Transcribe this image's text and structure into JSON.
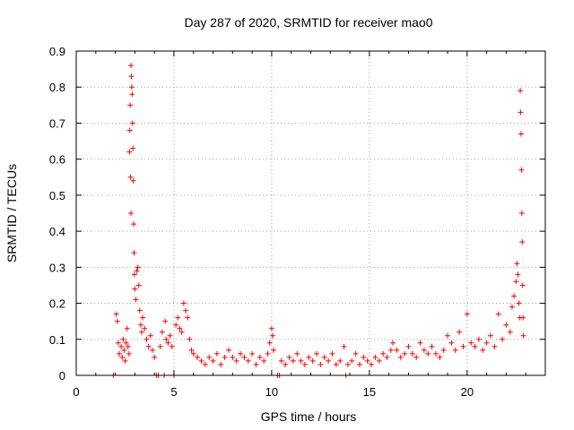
{
  "chart_data": {
    "type": "scatter",
    "title": "Day 287 of 2020, SRMTID for receiver mao0",
    "xlabel": "GPS time / hours",
    "ylabel": "SRMTID / TECUs",
    "xlim": [
      0,
      24
    ],
    "ylim": [
      0,
      0.9
    ],
    "xticks": [
      "0",
      "5",
      "10",
      "15",
      "20"
    ],
    "xtick_values": [
      0,
      5,
      10,
      15,
      20
    ],
    "yticks": [
      "0",
      "0.1",
      "0.2",
      "0.3",
      "0.4",
      "0.5",
      "0.6",
      "0.7",
      "0.8",
      "0.9"
    ],
    "ytick_values": [
      0,
      0.1,
      0.2,
      0.3,
      0.4,
      0.5,
      0.6,
      0.7,
      0.8,
      0.9
    ],
    "grid": true,
    "marker": "+",
    "color": "#ff0000",
    "series": [
      {
        "name": "SRMTID",
        "points": [
          [
            1.9,
            0.0
          ],
          [
            2.05,
            0.17
          ],
          [
            2.1,
            0.15
          ],
          [
            2.15,
            0.09
          ],
          [
            2.2,
            0.06
          ],
          [
            2.3,
            0.08
          ],
          [
            2.35,
            0.05
          ],
          [
            2.4,
            0.1
          ],
          [
            2.45,
            0.07
          ],
          [
            2.5,
            0.04
          ],
          [
            2.55,
            0.09
          ],
          [
            2.6,
            0.13
          ],
          [
            2.65,
            0.08
          ],
          [
            2.7,
            0.06
          ],
          [
            2.72,
            0.62
          ],
          [
            2.74,
            0.68
          ],
          [
            2.76,
            0.75
          ],
          [
            2.78,
            0.55
          ],
          [
            2.8,
            0.45
          ],
          [
            2.8,
            0.86
          ],
          [
            2.82,
            0.83
          ],
          [
            2.84,
            0.8
          ],
          [
            2.86,
            0.78
          ],
          [
            2.88,
            0.7
          ],
          [
            2.9,
            0.63
          ],
          [
            2.92,
            0.54
          ],
          [
            2.94,
            0.42
          ],
          [
            2.96,
            0.34
          ],
          [
            2.98,
            0.28
          ],
          [
            3.0,
            0.24
          ],
          [
            3.05,
            0.21
          ],
          [
            3.1,
            0.29
          ],
          [
            3.15,
            0.3
          ],
          [
            3.2,
            0.25
          ],
          [
            3.25,
            0.18
          ],
          [
            3.3,
            0.14
          ],
          [
            3.35,
            0.12
          ],
          [
            3.4,
            0.16
          ],
          [
            3.5,
            0.13
          ],
          [
            3.6,
            0.1
          ],
          [
            3.7,
            0.08
          ],
          [
            3.8,
            0.11
          ],
          [
            3.9,
            0.07
          ],
          [
            4.0,
            0.05
          ],
          [
            4.1,
            0.0
          ],
          [
            4.2,
            0.0
          ],
          [
            4.3,
            0.08
          ],
          [
            4.4,
            0.12
          ],
          [
            4.5,
            0.0
          ],
          [
            4.55,
            0.15
          ],
          [
            4.6,
            0.1
          ],
          [
            4.7,
            0.09
          ],
          [
            4.8,
            0.11
          ],
          [
            4.9,
            0.08
          ],
          [
            5.0,
            0.0
          ],
          [
            5.1,
            0.14
          ],
          [
            5.2,
            0.16
          ],
          [
            5.3,
            0.13
          ],
          [
            5.4,
            0.12
          ],
          [
            5.5,
            0.2
          ],
          [
            5.6,
            0.18
          ],
          [
            5.7,
            0.16
          ],
          [
            5.8,
            0.1
          ],
          [
            5.9,
            0.07
          ],
          [
            6.0,
            0.06
          ],
          [
            6.2,
            0.05
          ],
          [
            6.4,
            0.04
          ],
          [
            6.6,
            0.03
          ],
          [
            6.8,
            0.05
          ],
          [
            7.0,
            0.04
          ],
          [
            7.2,
            0.06
          ],
          [
            7.4,
            0.03
          ],
          [
            7.6,
            0.05
          ],
          [
            7.8,
            0.07
          ],
          [
            8.0,
            0.05
          ],
          [
            8.2,
            0.04
          ],
          [
            8.4,
            0.06
          ],
          [
            8.6,
            0.05
          ],
          [
            8.8,
            0.04
          ],
          [
            9.0,
            0.06
          ],
          [
            9.2,
            0.03
          ],
          [
            9.4,
            0.05
          ],
          [
            9.6,
            0.04
          ],
          [
            9.8,
            0.06
          ],
          [
            9.9,
            0.09
          ],
          [
            10.0,
            0.13
          ],
          [
            10.05,
            0.11
          ],
          [
            10.1,
            0.07
          ],
          [
            10.3,
            0.0
          ],
          [
            10.4,
            0.0
          ],
          [
            10.5,
            0.04
          ],
          [
            10.7,
            0.03
          ],
          [
            10.9,
            0.05
          ],
          [
            11.1,
            0.04
          ],
          [
            11.3,
            0.06
          ],
          [
            11.5,
            0.04
          ],
          [
            11.7,
            0.03
          ],
          [
            11.9,
            0.05
          ],
          [
            12.1,
            0.04
          ],
          [
            12.3,
            0.06
          ],
          [
            12.5,
            0.03
          ],
          [
            12.7,
            0.05
          ],
          [
            12.9,
            0.04
          ],
          [
            13.1,
            0.06
          ],
          [
            13.3,
            0.03
          ],
          [
            13.5,
            0.04
          ],
          [
            13.7,
            0.08
          ],
          [
            13.8,
            0.0
          ],
          [
            13.9,
            0.03
          ],
          [
            14.1,
            0.04
          ],
          [
            14.3,
            0.06
          ],
          [
            14.5,
            0.03
          ],
          [
            14.7,
            0.05
          ],
          [
            14.9,
            0.04
          ],
          [
            15.1,
            0.03
          ],
          [
            15.3,
            0.05
          ],
          [
            15.5,
            0.04
          ],
          [
            15.7,
            0.06
          ],
          [
            15.9,
            0.05
          ],
          [
            16.1,
            0.07
          ],
          [
            16.2,
            0.09
          ],
          [
            16.4,
            0.07
          ],
          [
            16.6,
            0.05
          ],
          [
            16.8,
            0.06
          ],
          [
            17.0,
            0.08
          ],
          [
            17.2,
            0.06
          ],
          [
            17.4,
            0.05
          ],
          [
            17.6,
            0.09
          ],
          [
            17.8,
            0.07
          ],
          [
            18.0,
            0.06
          ],
          [
            18.2,
            0.08
          ],
          [
            18.4,
            0.06
          ],
          [
            18.6,
            0.05
          ],
          [
            18.8,
            0.07
          ],
          [
            19.0,
            0.11
          ],
          [
            19.2,
            0.09
          ],
          [
            19.4,
            0.07
          ],
          [
            19.6,
            0.12
          ],
          [
            19.8,
            0.08
          ],
          [
            20.0,
            0.17
          ],
          [
            20.2,
            0.09
          ],
          [
            20.4,
            0.08
          ],
          [
            20.6,
            0.1
          ],
          [
            20.8,
            0.07
          ],
          [
            21.0,
            0.09
          ],
          [
            21.2,
            0.11
          ],
          [
            21.4,
            0.08
          ],
          [
            21.6,
            0.17
          ],
          [
            21.8,
            0.1
          ],
          [
            22.0,
            0.14
          ],
          [
            22.2,
            0.12
          ],
          [
            22.3,
            0.19
          ],
          [
            22.4,
            0.22
          ],
          [
            22.5,
            0.26
          ],
          [
            22.55,
            0.31
          ],
          [
            22.6,
            0.28
          ],
          [
            22.65,
            0.2
          ],
          [
            22.7,
            0.16
          ],
          [
            22.72,
            0.79
          ],
          [
            22.74,
            0.73
          ],
          [
            22.76,
            0.67
          ],
          [
            22.78,
            0.57
          ],
          [
            22.8,
            0.45
          ],
          [
            22.82,
            0.37
          ],
          [
            22.84,
            0.25
          ],
          [
            22.86,
            0.16
          ],
          [
            22.88,
            0.11
          ]
        ]
      }
    ]
  }
}
